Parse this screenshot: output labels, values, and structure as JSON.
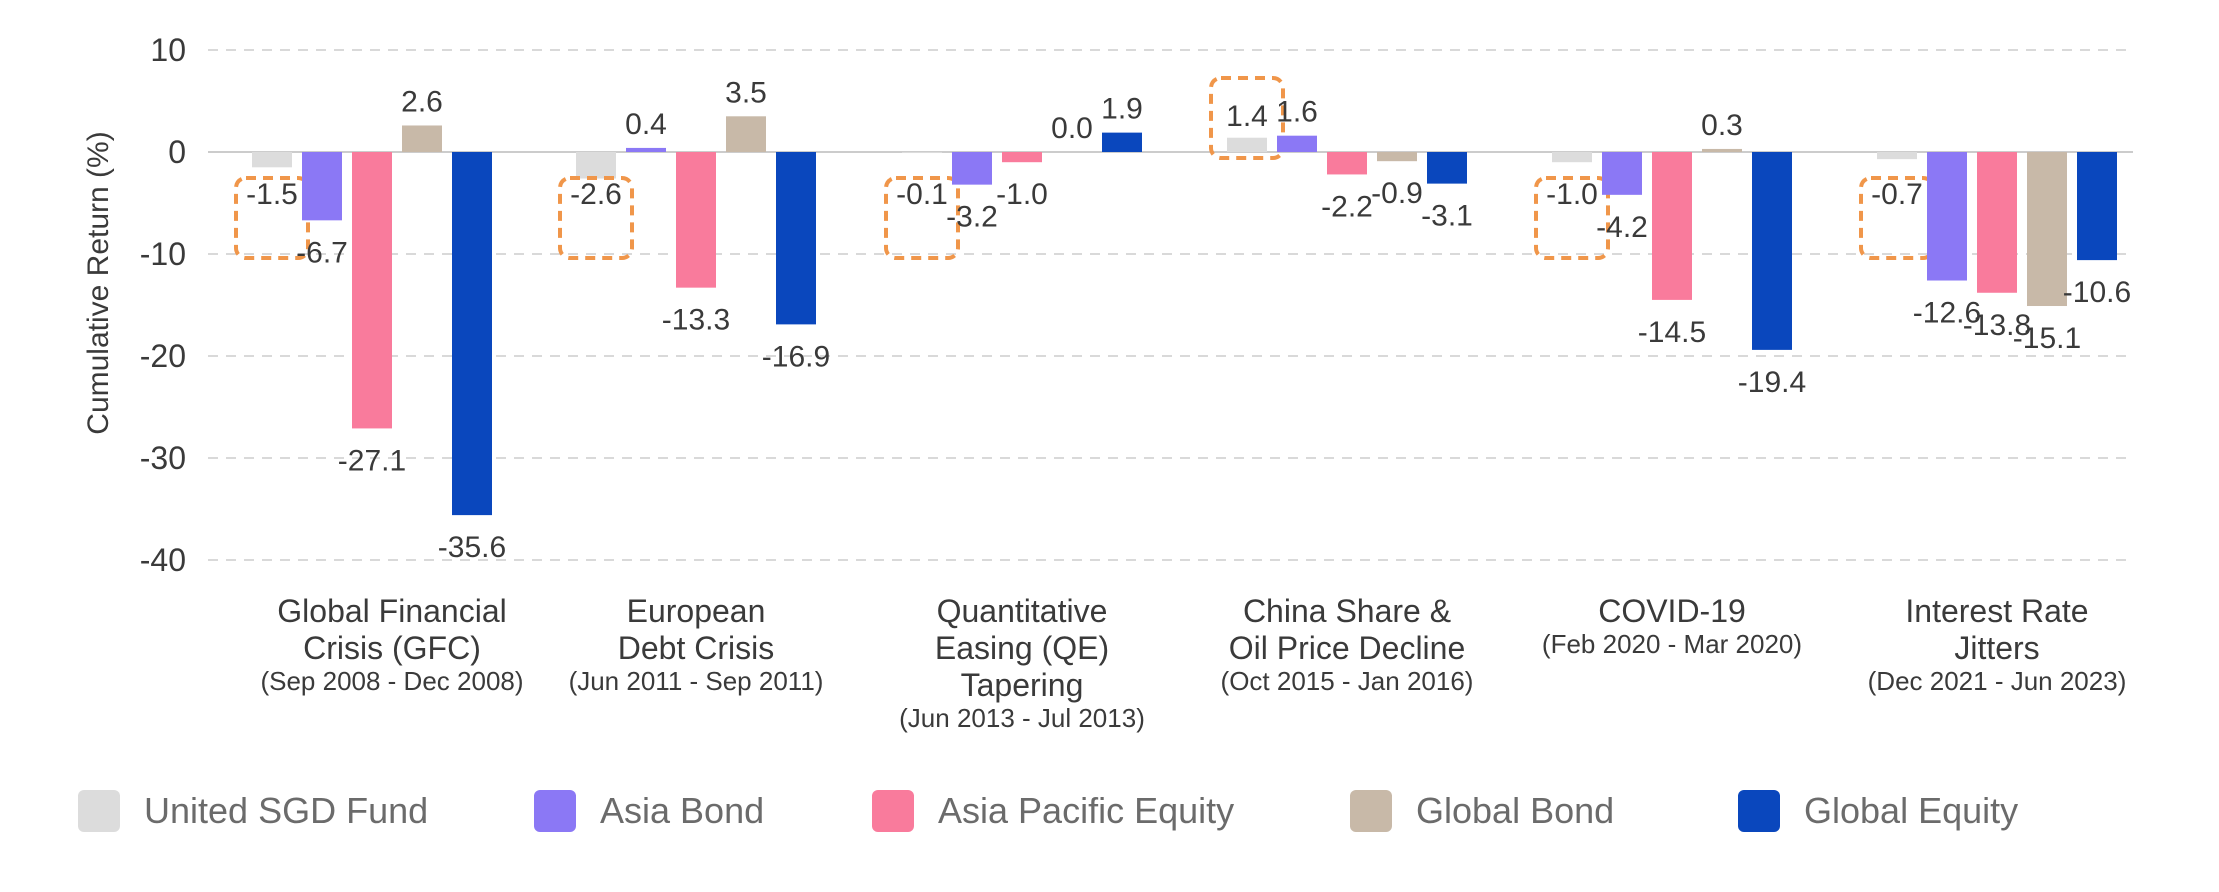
{
  "chart_data": {
    "type": "bar",
    "ylabel": "Cumulative Return (%)",
    "ylim": [
      -40,
      10
    ],
    "yticks": [
      "10",
      "0",
      "-10",
      "-20",
      "-30",
      "-40"
    ],
    "grid": true,
    "legend_position": "bottom",
    "categories": [
      {
        "lines": [
          "Global Financial",
          "Crisis (GFC)"
        ],
        "period": "(Sep 2008 - Dec 2008)"
      },
      {
        "lines": [
          "European",
          "Debt Crisis"
        ],
        "period": "(Jun 2011 - Sep 2011)"
      },
      {
        "lines": [
          "Quantitative",
          "Easing (QE)",
          "Tapering"
        ],
        "period": "(Jun 2013 - Jul 2013)"
      },
      {
        "lines": [
          "China Share &",
          "Oil Price Decline"
        ],
        "period": "(Oct 2015 - Jan 2016)"
      },
      {
        "lines": [
          "COVID-19"
        ],
        "period": "(Feb 2020 - Mar 2020)"
      },
      {
        "lines": [
          "Interest Rate",
          "Jitters"
        ],
        "period": "(Dec 2021 - Jun 2023)"
      }
    ],
    "series": [
      {
        "name": "United SGD Fund",
        "color": "#dcdcdc",
        "values": [
          -1.5,
          -2.6,
          -0.1,
          1.4,
          -1.0,
          -0.7
        ],
        "labels": [
          "-1.5",
          "-2.6",
          "-0.1",
          "1.4",
          "-1.0",
          "-0.7"
        ]
      },
      {
        "name": "Asia Bond",
        "color": "#8b78f5",
        "values": [
          -6.7,
          0.4,
          -3.2,
          1.6,
          -4.2,
          -12.6
        ],
        "labels": [
          "-6.7",
          "0.4",
          "-3.2",
          "1.6",
          "-4.2",
          "-12.6"
        ]
      },
      {
        "name": "Asia Pacific Equity",
        "color": "#f97b9c",
        "values": [
          -27.1,
          -13.3,
          -1.0,
          -2.2,
          -14.5,
          -13.8
        ],
        "labels": [
          "-27.1",
          "-13.3",
          "-1.0",
          "-2.2",
          "-14.5",
          "-13.8"
        ]
      },
      {
        "name": "Global Bond",
        "color": "#c8b9a8",
        "values": [
          2.6,
          3.5,
          0.0,
          -0.9,
          0.3,
          -15.1
        ],
        "labels": [
          "2.6",
          "3.5",
          "0.0",
          "-0.9",
          "0.3",
          "-15.1"
        ]
      },
      {
        "name": "Global Equity",
        "color": "#0a47bd",
        "values": [
          -35.6,
          -16.9,
          1.9,
          -3.1,
          -19.4,
          -10.6
        ],
        "labels": [
          "-35.6",
          "-16.9",
          "1.9",
          "-3.1",
          "-19.4",
          "-10.6"
        ]
      }
    ],
    "highlight_series": "United SGD Fund",
    "highlight_color": "#f0964a"
  }
}
